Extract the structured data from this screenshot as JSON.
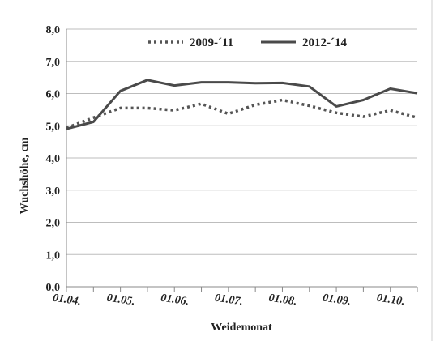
{
  "chart_data": {
    "type": "line",
    "xlabel": "Weidemonat",
    "ylabel": "Wuchshöhe, cm",
    "ylim": [
      0,
      8
    ],
    "yticks": [
      "0,0",
      "1,0",
      "2,0",
      "3,0",
      "4,0",
      "5,0",
      "6,0",
      "7,0",
      "8,0"
    ],
    "x_tick_labels": [
      "01.04.",
      "01.05.",
      "01.06.",
      "01.07.",
      "01.08.",
      "01.09.",
      "01.10."
    ],
    "x_ticks_at": [
      0,
      2,
      4,
      6,
      8,
      10,
      12
    ],
    "grid": true,
    "legend_position": "top",
    "series": [
      {
        "name": "2009-´11",
        "style": "dotted",
        "color": "#555555",
        "values": [
          4.93,
          5.25,
          5.55,
          5.55,
          5.48,
          5.68,
          5.37,
          5.65,
          5.8,
          5.62,
          5.4,
          5.28,
          5.48,
          5.25
        ]
      },
      {
        "name": "2012-´14",
        "style": "solid",
        "color": "#4a4a4a",
        "values": [
          4.9,
          5.12,
          6.08,
          6.42,
          6.25,
          6.35,
          6.35,
          6.32,
          6.33,
          6.22,
          5.6,
          5.8,
          6.15,
          6.01
        ]
      }
    ]
  }
}
